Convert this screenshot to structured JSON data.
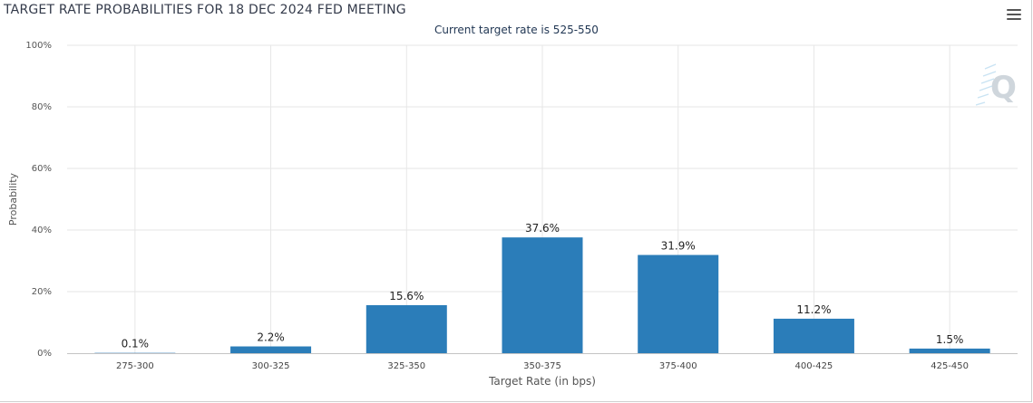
{
  "menu": {
    "icon": "hamburger-menu-icon"
  },
  "logo": {
    "text": "Q",
    "icon": "watermark-logo-icon"
  },
  "chart_data": {
    "type": "bar",
    "title": "TARGET RATE PROBABILITIES FOR 18 DEC 2024 FED MEETING",
    "subtitle": "Current target rate is 525-550",
    "xlabel": "Target Rate (in bps)",
    "ylabel": "Probability",
    "categories": [
      "275-300",
      "300-325",
      "325-350",
      "350-375",
      "375-400",
      "400-425",
      "425-450"
    ],
    "values": [
      0.1,
      2.2,
      15.6,
      37.6,
      31.9,
      11.2,
      1.5
    ],
    "data_labels": [
      "0.1%",
      "2.2%",
      "15.6%",
      "37.6%",
      "31.9%",
      "11.2%",
      "1.5%"
    ],
    "ylim": [
      0,
      100
    ],
    "yticks": [
      0,
      20,
      40,
      60,
      80,
      100
    ],
    "ytick_labels": [
      "0%",
      "20%",
      "40%",
      "60%",
      "80%",
      "100%"
    ],
    "bar_color": "#2b7db9",
    "grid": true,
    "legend": "none"
  }
}
